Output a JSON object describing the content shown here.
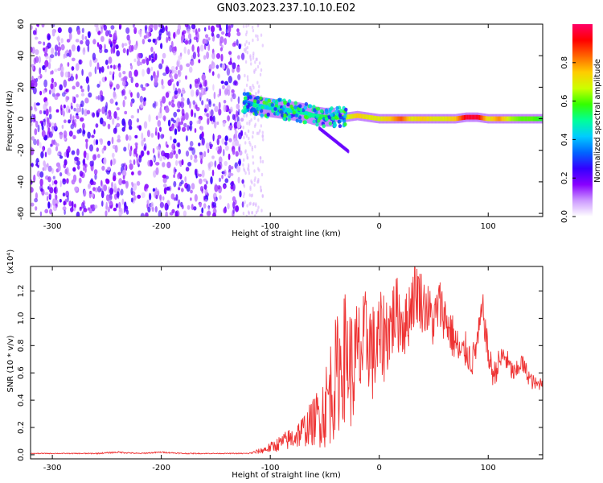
{
  "title": "GN03.2023.237.10.10.E02",
  "chart_data": [
    {
      "type": "heatmap",
      "title": "GN03.2023.237.10.10.E02",
      "xlabel": "Height of straight line (km)",
      "ylabel": "Frequency (Hz)",
      "xlim": [
        -320,
        150
      ],
      "ylim": [
        -62,
        60
      ],
      "x_ticks": [
        -300,
        -200,
        -100,
        0,
        100
      ],
      "y_ticks": [
        -60,
        -40,
        -20,
        0,
        20,
        40,
        60
      ],
      "colorbar": {
        "label": "Normalized spectral amplitude",
        "range": [
          0,
          1
        ],
        "ticks": [
          "0.0",
          "0.2",
          "0.4",
          "0.6",
          "0.8"
        ],
        "colors": [
          "#ffffff",
          "#cc99ff",
          "#8800ff",
          "#3300ff",
          "#0066ff",
          "#00ccff",
          "#00ff99",
          "#33ff00",
          "#ccff00",
          "#ffcc00",
          "#ff6600",
          "#ff0000",
          "#ff0066"
        ]
      },
      "noise_region": {
        "x": [
          -320,
          -125
        ],
        "amplitude_range": [
          0.05,
          0.25
        ]
      },
      "signal_band": [
        {
          "x": -120,
          "f": 10,
          "amp": 0.35
        },
        {
          "x": -110,
          "f": 8,
          "amp": 0.4
        },
        {
          "x": -100,
          "f": 7,
          "amp": 0.45
        },
        {
          "x": -90,
          "f": 6,
          "amp": 0.45
        },
        {
          "x": -80,
          "f": 5,
          "amp": 0.5
        },
        {
          "x": -70,
          "f": 4,
          "amp": 0.5
        },
        {
          "x": -60,
          "f": 2,
          "amp": 0.5
        },
        {
          "x": -50,
          "f": 1,
          "amp": 0.55
        },
        {
          "x": -40,
          "f": 1,
          "amp": 0.6
        },
        {
          "x": -30,
          "f": 1,
          "amp": 0.65
        },
        {
          "x": -20,
          "f": 2,
          "amp": 0.75
        },
        {
          "x": -10,
          "f": 1,
          "amp": 0.7
        },
        {
          "x": 0,
          "f": 0,
          "amp": 0.7
        },
        {
          "x": 10,
          "f": 0,
          "amp": 0.75
        },
        {
          "x": 20,
          "f": 0,
          "amp": 0.85
        },
        {
          "x": 30,
          "f": 0,
          "amp": 0.7
        },
        {
          "x": 40,
          "f": 0,
          "amp": 0.75
        },
        {
          "x": 50,
          "f": 0,
          "amp": 0.7
        },
        {
          "x": 60,
          "f": 0,
          "amp": 0.7
        },
        {
          "x": 70,
          "f": 0,
          "amp": 0.75
        },
        {
          "x": 80,
          "f": 1,
          "amp": 0.95
        },
        {
          "x": 90,
          "f": 1,
          "amp": 0.95
        },
        {
          "x": 100,
          "f": 0,
          "amp": 0.7
        },
        {
          "x": 110,
          "f": 0,
          "amp": 0.8
        },
        {
          "x": 120,
          "f": 0,
          "amp": 0.65
        },
        {
          "x": 130,
          "f": 0,
          "amp": 0.6
        },
        {
          "x": 140,
          "f": 0,
          "amp": 0.6
        },
        {
          "x": 150,
          "f": 0,
          "amp": 0.55
        }
      ]
    },
    {
      "type": "line",
      "xlabel": "Height of straight line (km)",
      "ylabel": "SNR (10 * v/v)",
      "y_scale_label": "(x10⁴)",
      "xlim": [
        -320,
        150
      ],
      "ylim": [
        -0.03,
        1.38
      ],
      "x_ticks": [
        -300,
        -200,
        -100,
        0,
        100
      ],
      "y_ticks": [
        "0.0",
        "0.2",
        "0.4",
        "0.6",
        "0.8",
        "1.0",
        "1.2"
      ],
      "color": "#ee3333",
      "series": [
        {
          "name": "SNR",
          "x": [
            -320,
            -300,
            -280,
            -260,
            -240,
            -220,
            -200,
            -180,
            -160,
            -140,
            -120,
            -110,
            -100,
            -90,
            -80,
            -70,
            -60,
            -50,
            -45,
            -40,
            -35,
            -30,
            -25,
            -20,
            -15,
            -10,
            -5,
            0,
            5,
            10,
            15,
            20,
            25,
            30,
            35,
            40,
            45,
            50,
            55,
            60,
            65,
            70,
            75,
            80,
            85,
            90,
            95,
            100,
            105,
            110,
            115,
            120,
            125,
            130,
            135,
            140,
            145,
            150
          ],
          "y": [
            0.01,
            0.01,
            0.01,
            0.01,
            0.02,
            0.01,
            0.02,
            0.01,
            0.01,
            0.01,
            0.01,
            0.03,
            0.06,
            0.1,
            0.14,
            0.2,
            0.28,
            0.4,
            0.55,
            0.65,
            0.75,
            0.85,
            0.7,
            0.8,
            0.85,
            0.95,
            0.8,
            0.9,
            0.95,
            1.0,
            1.1,
            1.05,
            1.0,
            1.2,
            1.25,
            1.15,
            1.1,
            1.0,
            1.15,
            1.05,
            0.95,
            0.85,
            0.75,
            0.8,
            0.7,
            0.85,
            1.1,
            0.75,
            0.6,
            0.7,
            0.75,
            0.65,
            0.6,
            0.7,
            0.62,
            0.55,
            0.52,
            0.55
          ],
          "fluctuation_amplitude": [
            0.003,
            0.003,
            0.003,
            0.004,
            0.006,
            0.004,
            0.005,
            0.004,
            0.003,
            0.003,
            0.004,
            0.02,
            0.04,
            0.06,
            0.09,
            0.12,
            0.18,
            0.3,
            0.4,
            0.45,
            0.45,
            0.5,
            0.45,
            0.45,
            0.4,
            0.4,
            0.38,
            0.35,
            0.35,
            0.3,
            0.28,
            0.28,
            0.25,
            0.25,
            0.25,
            0.22,
            0.2,
            0.2,
            0.2,
            0.18,
            0.18,
            0.16,
            0.14,
            0.14,
            0.12,
            0.12,
            0.12,
            0.12,
            0.1,
            0.1,
            0.1,
            0.08,
            0.08,
            0.08,
            0.07,
            0.06,
            0.05,
            0.05
          ]
        }
      ]
    }
  ]
}
